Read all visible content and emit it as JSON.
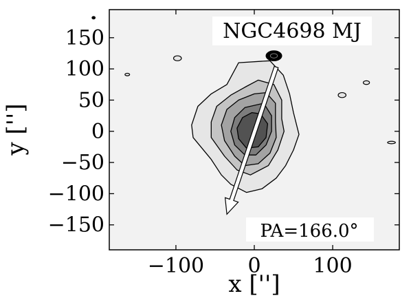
{
  "chart_data": {
    "type": "contour",
    "title": "NGC4698 MJ",
    "annotation": "PA=166.0°",
    "xlabel": "x ['']",
    "ylabel": "y ['']",
    "xlim": [
      -185,
      185
    ],
    "ylim": [
      -190,
      195
    ],
    "xticks": [
      -100,
      0,
      100
    ],
    "yticks": [
      -150,
      -100,
      -50,
      0,
      50,
      100,
      150
    ],
    "xtick_labels": [
      "−100",
      "0",
      "100"
    ],
    "ytick_labels": [
      "−150",
      "−100",
      "−50",
      "0",
      "50",
      "100",
      "150"
    ],
    "grid": false,
    "contour_fill_colors": [
      "#e6e6e6",
      "#c4c4c4",
      "#a3a3a3",
      "#7d7d7d",
      "#525252"
    ],
    "contour_levels": [
      {
        "level": 1,
        "color": "#e6e6e6",
        "points": [
          [
            -20,
            110
          ],
          [
            20,
            113
          ],
          [
            37,
            90
          ],
          [
            45,
            60
          ],
          [
            50,
            30
          ],
          [
            57,
            -5
          ],
          [
            50,
            -30
          ],
          [
            40,
            -55
          ],
          [
            28,
            -75
          ],
          [
            10,
            -92
          ],
          [
            -10,
            -98
          ],
          [
            -30,
            -85
          ],
          [
            -42,
            -70
          ],
          [
            -55,
            -45
          ],
          [
            -78,
            -10
          ],
          [
            -80,
            10
          ],
          [
            -72,
            40
          ],
          [
            -55,
            60
          ],
          [
            -35,
            75
          ]
        ]
      },
      {
        "level": 2,
        "color": "#c4c4c4",
        "points": [
          [
            5,
            82
          ],
          [
            25,
            75
          ],
          [
            35,
            50
          ],
          [
            35,
            20
          ],
          [
            38,
            0
          ],
          [
            30,
            -30
          ],
          [
            18,
            -55
          ],
          [
            -5,
            -70
          ],
          [
            -22,
            -62
          ],
          [
            -38,
            -40
          ],
          [
            -55,
            -10
          ],
          [
            -55,
            15
          ],
          [
            -48,
            40
          ],
          [
            -30,
            58
          ],
          [
            -10,
            72
          ]
        ]
      },
      {
        "level": 3,
        "color": "#a3a3a3",
        "points": [
          [
            15,
            62
          ],
          [
            27,
            45
          ],
          [
            27,
            15
          ],
          [
            28,
            -10
          ],
          [
            20,
            -35
          ],
          [
            5,
            -52
          ],
          [
            -12,
            -55
          ],
          [
            -25,
            -40
          ],
          [
            -38,
            -15
          ],
          [
            -42,
            10
          ],
          [
            -35,
            35
          ],
          [
            -20,
            50
          ],
          [
            0,
            60
          ]
        ]
      },
      {
        "level": 4,
        "color": "#7d7d7d",
        "points": [
          [
            12,
            45
          ],
          [
            22,
            25
          ],
          [
            22,
            0
          ],
          [
            15,
            -22
          ],
          [
            2,
            -38
          ],
          [
            -12,
            -38
          ],
          [
            -25,
            -22
          ],
          [
            -30,
            0
          ],
          [
            -25,
            22
          ],
          [
            -12,
            38
          ]
        ]
      },
      {
        "level": 5,
        "color": "#525252",
        "points": [
          [
            8,
            28
          ],
          [
            17,
            12
          ],
          [
            15,
            -10
          ],
          [
            5,
            -25
          ],
          [
            -10,
            -27
          ],
          [
            -20,
            -12
          ],
          [
            -22,
            5
          ],
          [
            -15,
            22
          ],
          [
            -3,
            30
          ]
        ]
      }
    ],
    "features": [
      {
        "name": "bright-knot",
        "x": 25,
        "y": 121,
        "rx": 10,
        "ry": 8,
        "color": "#000000"
      },
      {
        "name": "blob-1",
        "x": -98,
        "y": 117,
        "rx": 5,
        "ry": 4,
        "color": "#e6e6e6"
      },
      {
        "name": "blob-2",
        "x": -162,
        "y": 91,
        "rx": 3,
        "ry": 2,
        "color": "#e6e6e6"
      },
      {
        "name": "blob-3",
        "x": 112,
        "y": 58,
        "rx": 5,
        "ry": 4,
        "color": "#e6e6e6"
      },
      {
        "name": "blob-4",
        "x": 143,
        "y": 78,
        "rx": 4,
        "ry": 3,
        "color": "#e6e6e6"
      },
      {
        "name": "blob-5",
        "x": 175,
        "y": -18,
        "rx": 5,
        "ry": 2,
        "color": "#e6e6e6"
      },
      {
        "name": "blob-6",
        "x": -205,
        "y": 182,
        "rx": 2,
        "ry": 2,
        "color": "#000000"
      }
    ],
    "position_angle_arrow": {
      "angle_deg": 166.0,
      "start": [
        28,
        103
      ],
      "end": [
        -35,
        -133
      ]
    }
  }
}
